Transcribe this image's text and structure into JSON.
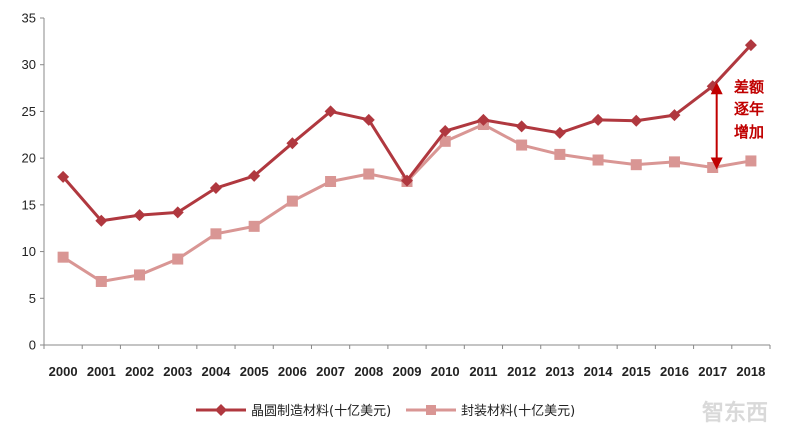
{
  "chart_data": {
    "type": "line",
    "x": [
      "2000",
      "2001",
      "2002",
      "2003",
      "2004",
      "2005",
      "2006",
      "2007",
      "2008",
      "2009",
      "2010",
      "2011",
      "2012",
      "2013",
      "2014",
      "2015",
      "2016",
      "2017",
      "2018"
    ],
    "ylim": [
      0,
      35
    ],
    "yticks": [
      0,
      5,
      10,
      15,
      20,
      25,
      30,
      35
    ],
    "grid": false,
    "legend_position": "bottom",
    "series": [
      {
        "name": "晶圆制造材料(十亿美元)",
        "color": "#b0383f",
        "marker": "diamond",
        "values": [
          18.0,
          13.3,
          13.9,
          14.2,
          16.8,
          18.1,
          21.6,
          25.0,
          24.1,
          17.6,
          22.9,
          24.1,
          23.4,
          22.7,
          24.1,
          24.0,
          24.6,
          27.7,
          32.1
        ]
      },
      {
        "name": "封装材料(十亿美元)",
        "color": "#d99694",
        "marker": "square",
        "values": [
          9.4,
          6.8,
          7.5,
          9.2,
          11.9,
          12.7,
          15.4,
          17.5,
          18.3,
          17.5,
          21.8,
          23.6,
          21.4,
          20.4,
          19.8,
          19.3,
          19.6,
          19.0,
          19.7
        ]
      }
    ],
    "annotation": {
      "lines": [
        "差额",
        "逐年",
        "增加"
      ],
      "color": "#c00000"
    }
  },
  "watermark": "智东西"
}
